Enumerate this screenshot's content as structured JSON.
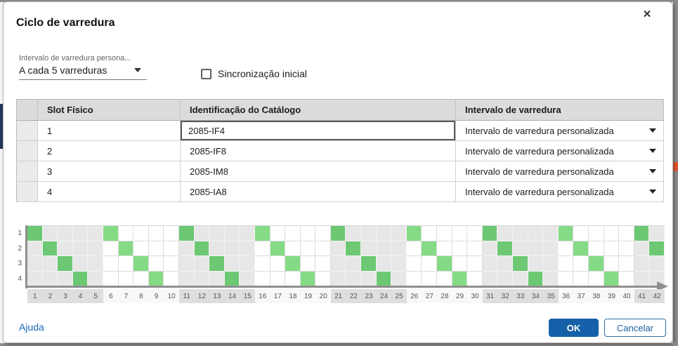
{
  "dialog": {
    "title": "Ciclo de varredura",
    "close_glyph": "✕"
  },
  "interval_select": {
    "label": "Intervalo de varredura persona...",
    "value": "A cada 5 varreduras"
  },
  "sync_checkbox": {
    "label": "Sincronização inicial",
    "checked": false
  },
  "table": {
    "columns": [
      "",
      "Slot Físico",
      "Identificação do Catálogo",
      "Intervalo de varredura"
    ],
    "rows": [
      {
        "slot": "1",
        "catalog": "2085-IF4",
        "interval": "Intervalo de varredura personalizada",
        "catalog_focused": true
      },
      {
        "slot": "2",
        "catalog": "2085-IF8",
        "interval": "Intervalo de varredura personalizada",
        "catalog_focused": false
      },
      {
        "slot": "3",
        "catalog": "2085-IM8",
        "interval": "Intervalo de varredura personalizada",
        "catalog_focused": false
      },
      {
        "slot": "4",
        "catalog": "2085-IA8",
        "interval": "Intervalo de varredura personalizada",
        "catalog_focused": false
      }
    ]
  },
  "chart_data": {
    "type": "heatmap",
    "title": "",
    "row_labels": [
      "1",
      "2",
      "3",
      "4"
    ],
    "x_min": 1,
    "x_max": 42,
    "band_size": 5,
    "shaded_bands": [
      [
        1,
        5
      ],
      [
        11,
        15
      ],
      [
        21,
        25
      ],
      [
        31,
        35
      ],
      [
        41,
        42
      ]
    ],
    "green_cells_by_row": {
      "1": [
        1,
        6,
        11,
        16,
        21,
        26,
        31,
        36,
        41
      ],
      "2": [
        2,
        7,
        12,
        17,
        22,
        27,
        32,
        37,
        42
      ],
      "3": [
        3,
        8,
        13,
        18,
        23,
        28,
        33,
        38
      ],
      "4": [
        4,
        9,
        14,
        19,
        24,
        29,
        34,
        39
      ]
    },
    "colors": {
      "green_on_shaded": "#6cc873",
      "green_on_light": "#85db85",
      "shaded_cell": "#e7e7e7",
      "light_cell": "#ffffff",
      "label_band_shaded": "#dedede",
      "label_band_light": "#f8f8f8",
      "axis": "#8f8f8f"
    }
  },
  "footer": {
    "help_label": "Ajuda",
    "ok_label": "OK",
    "cancel_label": "Cancelar"
  }
}
